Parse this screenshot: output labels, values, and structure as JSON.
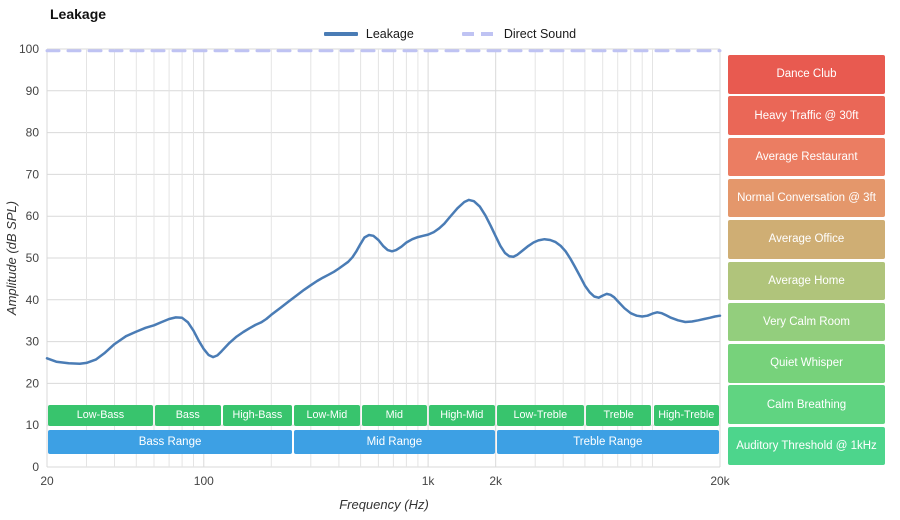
{
  "title": "Leakage",
  "legend": {
    "items": [
      {
        "label": "Leakage",
        "color": "#4a7cb5",
        "style": "solid"
      },
      {
        "label": "Direct Sound",
        "color": "#bfc3f3",
        "style": "dashed"
      }
    ]
  },
  "chart_data": {
    "type": "line",
    "title": "Leakage",
    "xlabel": "Frequency (Hz)",
    "ylabel": "Amplitude (dB SPL)",
    "x_scale": "log",
    "xlim": [
      20,
      20000
    ],
    "ylim": [
      0,
      100
    ],
    "grid": true,
    "legend_position": "top-center",
    "y_ticks": [
      0,
      10,
      20,
      30,
      40,
      50,
      60,
      70,
      80,
      90,
      100
    ],
    "x_ticks": [
      {
        "f": 20,
        "label": "20"
      },
      {
        "f": 100,
        "label": "100"
      },
      {
        "f": 1000,
        "label": "1k"
      },
      {
        "f": 2000,
        "label": "2k"
      },
      {
        "f": 20000,
        "label": "20k"
      }
    ],
    "x_minor_gridlines": [
      30,
      40,
      50,
      60,
      70,
      80,
      90,
      200,
      300,
      400,
      500,
      600,
      700,
      800,
      900,
      3000,
      4000,
      5000,
      6000,
      7000,
      8000,
      9000,
      10000
    ],
    "series": [
      {
        "name": "Leakage",
        "color": "#4a7cb5",
        "width": 2.5,
        "dash": null,
        "points": [
          [
            20,
            26
          ],
          [
            22,
            25.2
          ],
          [
            25,
            24.8
          ],
          [
            28,
            24.7
          ],
          [
            30,
            24.9
          ],
          [
            33,
            25.7
          ],
          [
            36,
            27.2
          ],
          [
            40,
            29.4
          ],
          [
            45,
            31.3
          ],
          [
            50,
            32.4
          ],
          [
            55,
            33.3
          ],
          [
            60,
            33.9
          ],
          [
            65,
            34.7
          ],
          [
            70,
            35.4
          ],
          [
            75,
            35.8
          ],
          [
            80,
            35.7
          ],
          [
            85,
            34.6
          ],
          [
            90,
            32.6
          ],
          [
            95,
            30.2
          ],
          [
            100,
            28.2
          ],
          [
            105,
            26.8
          ],
          [
            110,
            26.3
          ],
          [
            115,
            26.7
          ],
          [
            120,
            27.7
          ],
          [
            130,
            29.7
          ],
          [
            140,
            31.2
          ],
          [
            150,
            32.3
          ],
          [
            160,
            33.2
          ],
          [
            170,
            34
          ],
          [
            180,
            34.6
          ],
          [
            190,
            35.4
          ],
          [
            200,
            36.4
          ],
          [
            220,
            38.1
          ],
          [
            240,
            39.7
          ],
          [
            260,
            41.1
          ],
          [
            280,
            42.4
          ],
          [
            300,
            43.5
          ],
          [
            320,
            44.5
          ],
          [
            340,
            45.3
          ],
          [
            360,
            46
          ],
          [
            380,
            46.7
          ],
          [
            400,
            47.5
          ],
          [
            420,
            48.3
          ],
          [
            440,
            49.1
          ],
          [
            460,
            50.2
          ],
          [
            480,
            51.7
          ],
          [
            500,
            53.4
          ],
          [
            520,
            54.9
          ],
          [
            545,
            55.5
          ],
          [
            570,
            55.3
          ],
          [
            600,
            54.3
          ],
          [
            630,
            52.9
          ],
          [
            660,
            51.9
          ],
          [
            690,
            51.6
          ],
          [
            720,
            51.9
          ],
          [
            760,
            52.7
          ],
          [
            800,
            53.7
          ],
          [
            850,
            54.5
          ],
          [
            900,
            55
          ],
          [
            950,
            55.3
          ],
          [
            1000,
            55.6
          ],
          [
            1060,
            56.2
          ],
          [
            1120,
            57.1
          ],
          [
            1180,
            58.2
          ],
          [
            1250,
            59.8
          ],
          [
            1350,
            61.9
          ],
          [
            1450,
            63.4
          ],
          [
            1520,
            63.9
          ],
          [
            1600,
            63.6
          ],
          [
            1700,
            62.3
          ],
          [
            1800,
            60.2
          ],
          [
            1900,
            57.7
          ],
          [
            2000,
            55.2
          ],
          [
            2100,
            52.9
          ],
          [
            2200,
            51.2
          ],
          [
            2300,
            50.4
          ],
          [
            2400,
            50.3
          ],
          [
            2500,
            50.8
          ],
          [
            2650,
            51.9
          ],
          [
            2800,
            52.9
          ],
          [
            2950,
            53.7
          ],
          [
            3100,
            54.2
          ],
          [
            3300,
            54.5
          ],
          [
            3500,
            54.3
          ],
          [
            3700,
            53.8
          ],
          [
            3900,
            52.9
          ],
          [
            4100,
            51.6
          ],
          [
            4300,
            49.9
          ],
          [
            4500,
            48
          ],
          [
            4750,
            45.7
          ],
          [
            5000,
            43.4
          ],
          [
            5250,
            41.8
          ],
          [
            5500,
            40.8
          ],
          [
            5750,
            40.5
          ],
          [
            6000,
            41
          ],
          [
            6250,
            41.4
          ],
          [
            6500,
            41.2
          ],
          [
            6750,
            40.6
          ],
          [
            7000,
            39.7
          ],
          [
            7500,
            38
          ],
          [
            8000,
            36.8
          ],
          [
            8500,
            36.2
          ],
          [
            9000,
            36
          ],
          [
            9500,
            36.2
          ],
          [
            10000,
            36.7
          ],
          [
            10500,
            37
          ],
          [
            11000,
            36.8
          ],
          [
            11500,
            36.3
          ],
          [
            12000,
            35.8
          ],
          [
            13000,
            35.1
          ],
          [
            14000,
            34.7
          ],
          [
            15000,
            34.8
          ],
          [
            16000,
            35.1
          ],
          [
            17000,
            35.4
          ],
          [
            18000,
            35.7
          ],
          [
            19000,
            36
          ],
          [
            20000,
            36.2
          ]
        ]
      },
      {
        "name": "Direct Sound",
        "color": "#bfc3f3",
        "width": 3,
        "dash": "12 9",
        "points": [
          [
            20,
            99.6
          ],
          [
            20000,
            99.6
          ]
        ]
      }
    ]
  },
  "frequency_bands": {
    "sub_color": "#38c46d",
    "range_color": "#3da0e4",
    "sub": [
      {
        "label": "Low-Bass",
        "f1": 20,
        "f2": 60
      },
      {
        "label": "Bass",
        "f1": 60,
        "f2": 120
      },
      {
        "label": "High-Bass",
        "f1": 120,
        "f2": 250
      },
      {
        "label": "Low-Mid",
        "f1": 250,
        "f2": 500
      },
      {
        "label": "Mid",
        "f1": 500,
        "f2": 1000
      },
      {
        "label": "High-Mid",
        "f1": 1000,
        "f2": 2000
      },
      {
        "label": "Low-Treble",
        "f1": 2000,
        "f2": 5000
      },
      {
        "label": "Treble",
        "f1": 5000,
        "f2": 10000
      },
      {
        "label": "High-Treble",
        "f1": 10000,
        "f2": 20000
      }
    ],
    "ranges": [
      {
        "label": "Bass Range",
        "f1": 20,
        "f2": 250
      },
      {
        "label": "Mid Range",
        "f1": 250,
        "f2": 2000
      },
      {
        "label": "Treble Range",
        "f1": 2000,
        "f2": 20000
      }
    ]
  },
  "noise_reference_levels": [
    {
      "label": "Dance Club",
      "color": "#e85a50"
    },
    {
      "label": "Heavy Traffic @ 30ft",
      "color": "#ea6757"
    },
    {
      "label": "Average Restaurant",
      "color": "#eb7d62"
    },
    {
      "label": "Normal Conversation @ 3ft",
      "color": "#e4976b"
    },
    {
      "label": "Average Office",
      "color": "#cfae74"
    },
    {
      "label": "Average Home",
      "color": "#b0c47b"
    },
    {
      "label": "Very Calm Room",
      "color": "#93ce7d"
    },
    {
      "label": "Quiet Whisper",
      "color": "#77d27b"
    },
    {
      "label": "Calm Breathing",
      "color": "#60d481"
    },
    {
      "label": "Auditory Threshold @ 1kHz",
      "color": "#4dd58c"
    }
  ]
}
